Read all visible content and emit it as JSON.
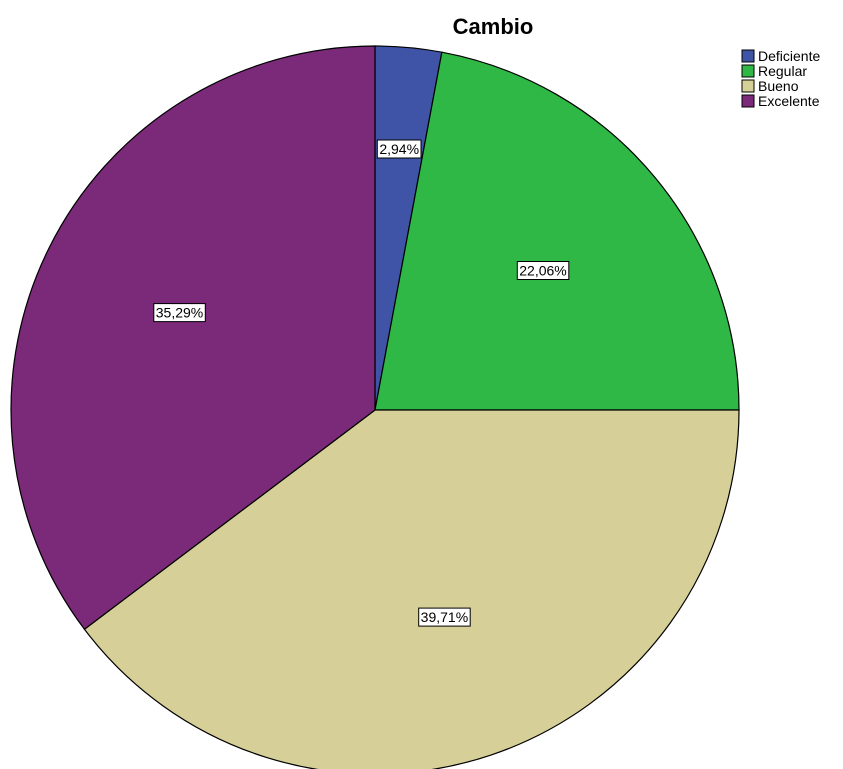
{
  "chart_data": {
    "type": "pie",
    "title": "Cambio",
    "start_angle_deg": 0,
    "direction": "clockwise",
    "legend_position": "top-right",
    "slices": [
      {
        "label": "Deficiente",
        "value": 2.94,
        "value_label": "2,94%",
        "color": "#3f54a6"
      },
      {
        "label": "Regular",
        "value": 22.06,
        "value_label": "22,06%",
        "color": "#2fb845"
      },
      {
        "label": "Bueno",
        "value": 39.71,
        "value_label": "39,71%",
        "color": "#d6cf98"
      },
      {
        "label": "Excelente",
        "value": 35.29,
        "value_label": "35,29%",
        "color": "#7b2979"
      }
    ]
  }
}
